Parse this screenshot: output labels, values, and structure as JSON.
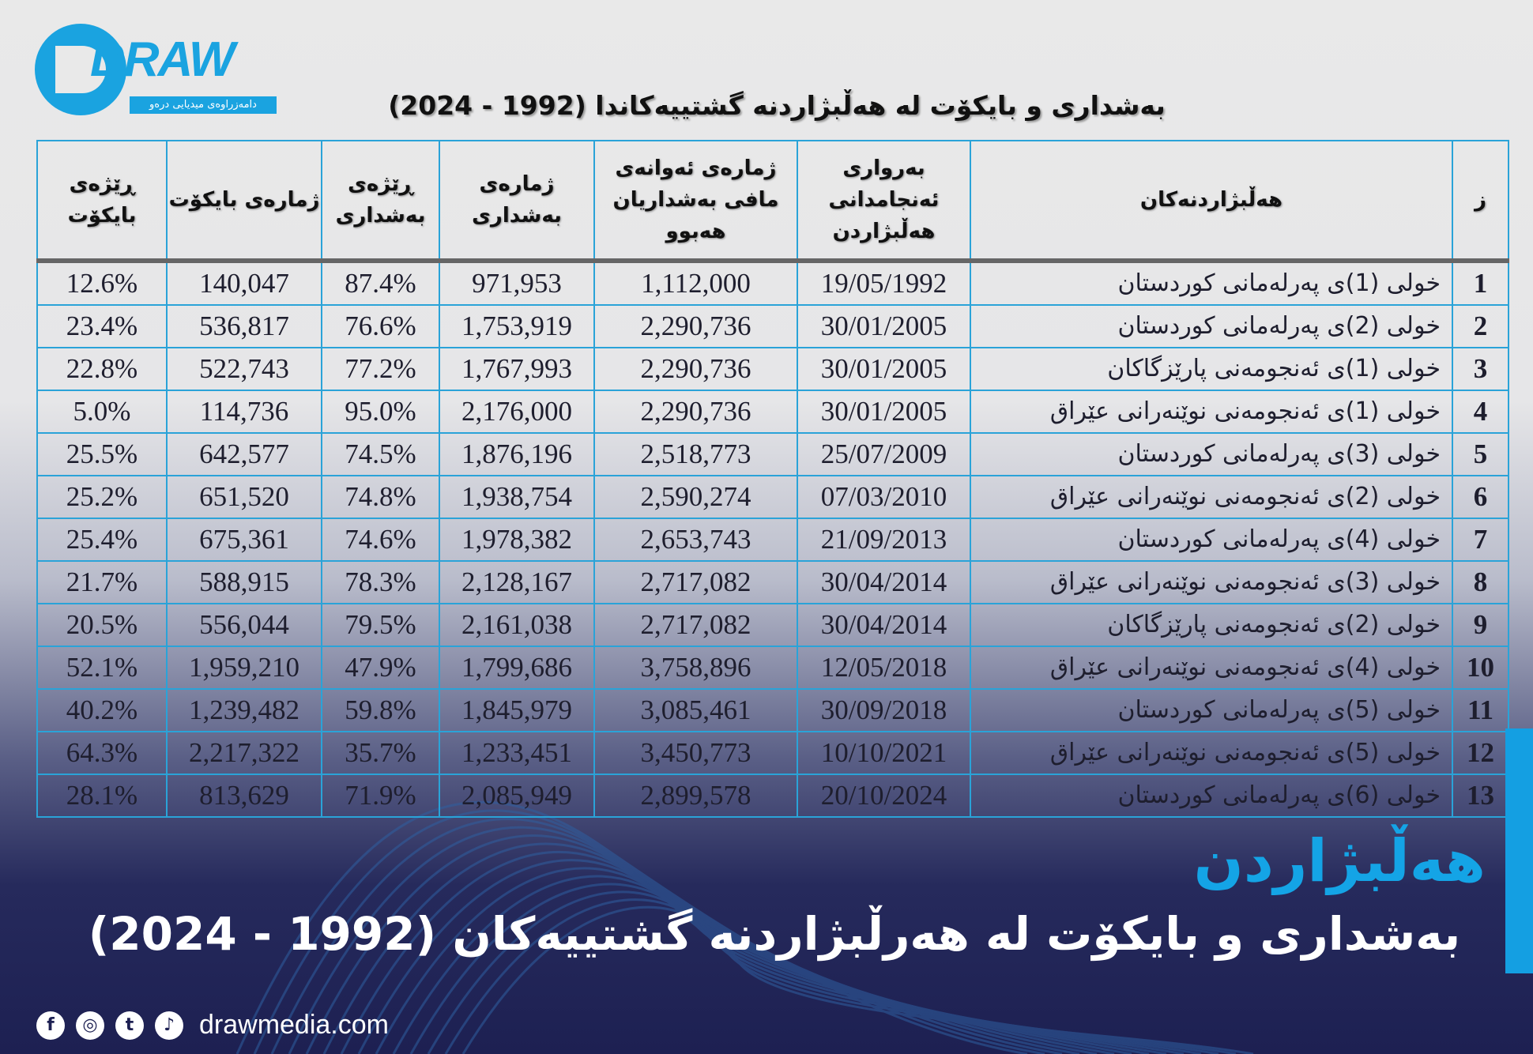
{
  "logo": {
    "word": "DRAW",
    "subtitle": "دامەزراوەی میدیایی درەو"
  },
  "table_title": "بەشداری و بایکۆت لە هەڵبژاردنە گشتییەکاندا (1992 - 2024)",
  "headers": [
    "ز",
    "هەڵبژاردنەکان",
    "بەرواری ئەنجامدانی هەڵبژاردن",
    "ژمارەی ئەوانەی مافی بەشداریان هەبوو",
    "ژمارەی بەشداری",
    "ڕێژەی بەشداری",
    "ژمارەی بایکۆت",
    "ڕێژەی بایکۆت"
  ],
  "rows": [
    [
      "1",
      "خولی (1)ی پەرلەمانی کوردستان",
      "19/05/1992",
      "1,112,000",
      "971,953",
      "87.4%",
      "140,047",
      "12.6%"
    ],
    [
      "2",
      "خولی (2)ی پەرلەمانی کوردستان",
      "30/01/2005",
      "2,290,736",
      "1,753,919",
      "76.6%",
      "536,817",
      "23.4%"
    ],
    [
      "3",
      "خولی (1)ی ئەنجومەنی پارێزگاکان",
      "30/01/2005",
      "2,290,736",
      "1,767,993",
      "77.2%",
      "522,743",
      "22.8%"
    ],
    [
      "4",
      "خولی (1)ی ئەنجومەنی نوێنەرانی عێراق",
      "30/01/2005",
      "2,290,736",
      "2,176,000",
      "95.0%",
      "114,736",
      "5.0%"
    ],
    [
      "5",
      "خولی (3)ی پەرلەمانی کوردستان",
      "25/07/2009",
      "2,518,773",
      "1,876,196",
      "74.5%",
      "642,577",
      "25.5%"
    ],
    [
      "6",
      "خولی (2)ی ئەنجومەنی نوێنەرانی عێراق",
      "07/03/2010",
      "2,590,274",
      "1,938,754",
      "74.8%",
      "651,520",
      "25.2%"
    ],
    [
      "7",
      "خولی (4)ی پەرلەمانی کوردستان",
      "21/09/2013",
      "2,653,743",
      "1,978,382",
      "74.6%",
      "675,361",
      "25.4%"
    ],
    [
      "8",
      "خولی (3)ی ئەنجومەنی نوێنەرانی عێراق",
      "30/04/2014",
      "2,717,082",
      "2,128,167",
      "78.3%",
      "588,915",
      "21.7%"
    ],
    [
      "9",
      "خولی (2)ی ئەنجومەنی پارێزگاکان",
      "30/04/2014",
      "2,717,082",
      "2,161,038",
      "79.5%",
      "556,044",
      "20.5%"
    ],
    [
      "10",
      "خولی (4)ی ئەنجومەنی نوێنەرانی عێراق",
      "12/05/2018",
      "3,758,896",
      "1,799,686",
      "47.9%",
      "1,959,210",
      "52.1%"
    ],
    [
      "11",
      "خولی (5)ی پەرلەمانی کوردستان",
      "30/09/2018",
      "3,085,461",
      "1,845,979",
      "59.8%",
      "1,239,482",
      "40.2%"
    ],
    [
      "12",
      "خولی (5)ی ئەنجومەنی نوێنەرانی عێراق",
      "10/10/2021",
      "3,450,773",
      "1,233,451",
      "35.7%",
      "2,217,322",
      "64.3%"
    ],
    [
      "13",
      "خولی (6)ی پەرلەمانی کوردستان",
      "20/10/2024",
      "2,899,578",
      "2,085,949",
      "71.9%",
      "813,629",
      "28.1%"
    ]
  ],
  "hashtag": "هەڵبژاردن",
  "bottom_title": "بەشداری و بایکۆت لە هەرڵبژاردنە گشتییەکان (1992 - 2024)",
  "footer": {
    "icons": [
      "facebook-icon",
      "instagram-icon",
      "twitter-icon",
      "tiktok-icon"
    ],
    "site": "drawmedia.com"
  },
  "colors": {
    "accent": "#149fe2",
    "navy": "#1d2052",
    "grid": "#2aa3d8"
  }
}
